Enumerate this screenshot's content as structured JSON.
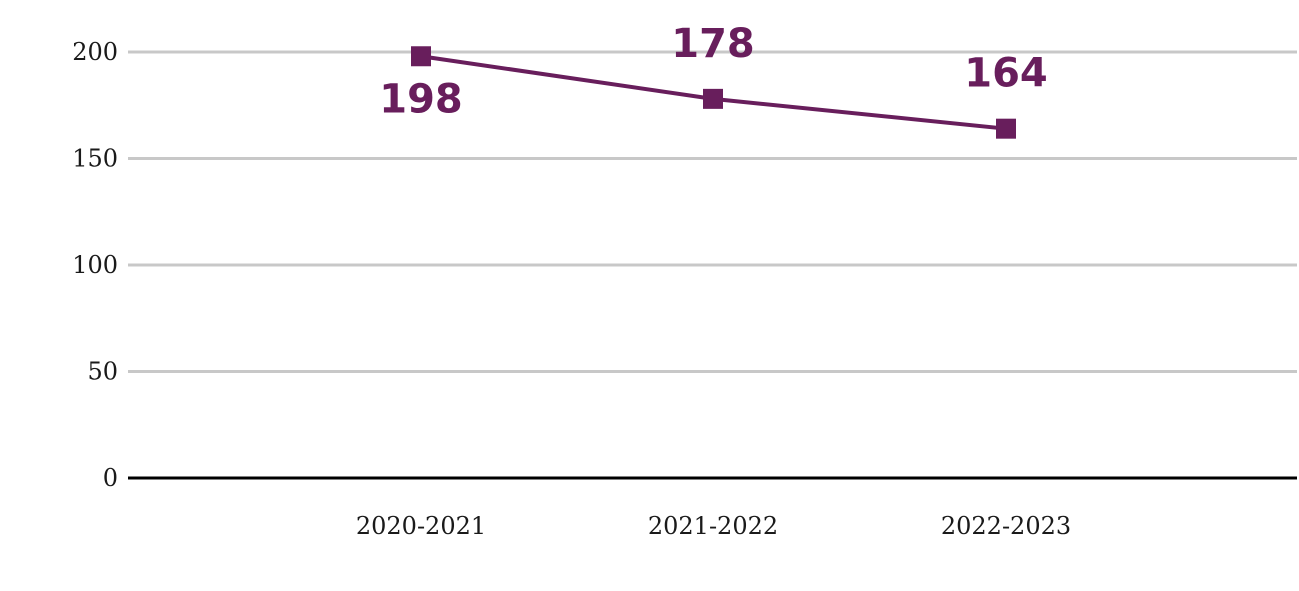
{
  "chart_data": {
    "type": "line",
    "categories": [
      "2020-2021",
      "2021-2022",
      "2022-2023"
    ],
    "series": [
      {
        "values": [
          198,
          178,
          164
        ]
      }
    ],
    "ylim": [
      0,
      200
    ],
    "yticks": [
      0,
      50,
      100,
      150,
      200
    ],
    "grid": true,
    "legend": "none",
    "title": "",
    "xlabel": "",
    "ylabel": "",
    "data_labels": [
      "198",
      "178",
      "164"
    ],
    "data_label_positions": [
      "below",
      "above",
      "above"
    ],
    "colors": {
      "series": "#681e5c",
      "grid": "#c8c8c8",
      "axis": "#000000"
    },
    "marker": "square"
  }
}
